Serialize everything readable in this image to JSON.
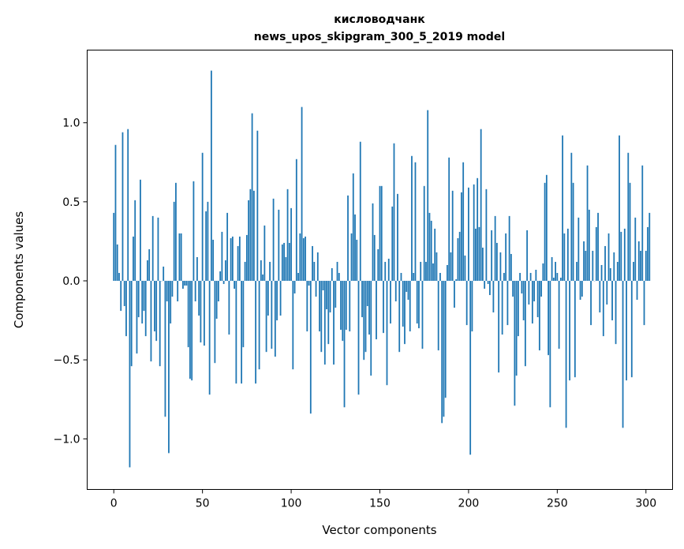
{
  "chart_data": {
    "type": "bar",
    "title": "кисловодчанк",
    "subtitle": "news_upos_skipgram_300_5_2019 model",
    "xlabel": "Vector components",
    "ylabel": "Components values",
    "xlim": [
      -15,
      315
    ],
    "ylim": [
      -1.32,
      1.46
    ],
    "xticks": [
      0,
      50,
      100,
      150,
      200,
      250,
      300
    ],
    "xtick_labels": [
      "0",
      "50",
      "100",
      "150",
      "200",
      "250",
      "300"
    ],
    "yticks": [
      -1.0,
      -0.5,
      0.0,
      0.5,
      1.0
    ],
    "ytick_labels": [
      "−1.0",
      "−0.5",
      "0.0",
      "0.5",
      "1.0"
    ],
    "grid": false,
    "color": "#1f77b4",
    "values": [
      0.43,
      0.86,
      0.23,
      0.05,
      -0.19,
      0.94,
      -0.16,
      -0.35,
      0.96,
      -1.18,
      -0.54,
      0.28,
      0.51,
      -0.46,
      -0.23,
      0.64,
      -0.27,
      -0.19,
      -0.35,
      0.13,
      0.2,
      -0.51,
      0.41,
      -0.32,
      -0.38,
      0.4,
      -0.54,
      0.0,
      0.09,
      -0.86,
      -0.13,
      -1.09,
      -0.27,
      -0.1,
      0.5,
      0.62,
      -0.13,
      0.3,
      0.3,
      -0.05,
      -0.03,
      -0.03,
      -0.42,
      -0.62,
      -0.63,
      0.63,
      -0.13,
      0.15,
      -0.22,
      -0.39,
      0.81,
      -0.41,
      0.44,
      0.5,
      -0.72,
      1.33,
      0.26,
      -0.52,
      -0.24,
      -0.13,
      0.06,
      0.31,
      -0.02,
      0.13,
      0.43,
      -0.34,
      0.27,
      0.28,
      -0.05,
      -0.65,
      0.22,
      0.28,
      -0.65,
      -0.42,
      0.12,
      0.29,
      0.51,
      0.58,
      1.06,
      0.57,
      -0.65,
      0.95,
      -0.56,
      0.13,
      0.04,
      0.35,
      -0.45,
      -0.22,
      0.12,
      -0.43,
      0.52,
      -0.48,
      -0.25,
      0.45,
      -0.22,
      0.23,
      0.24,
      0.15,
      0.58,
      0.24,
      0.46,
      -0.56,
      -0.08,
      0.77,
      0.05,
      0.3,
      1.1,
      0.27,
      0.28,
      -0.32,
      -0.03,
      -0.84,
      0.22,
      0.12,
      -0.1,
      0.18,
      -0.32,
      -0.45,
      -0.06,
      -0.53,
      -0.18,
      -0.4,
      -0.2,
      0.08,
      -0.53,
      -0.17,
      0.12,
      0.05,
      -0.31,
      -0.38,
      -0.8,
      -0.31,
      0.54,
      -0.32,
      0.3,
      0.68,
      0.42,
      0.26,
      -0.72,
      0.88,
      -0.23,
      -0.5,
      -0.45,
      -0.16,
      -0.34,
      -0.6,
      0.49,
      0.29,
      -0.37,
      0.2,
      0.6,
      0.6,
      -0.33,
      0.12,
      -0.66,
      0.14,
      -0.27,
      0.47,
      0.87,
      -0.13,
      0.55,
      -0.45,
      0.05,
      -0.29,
      -0.4,
      -0.07,
      -0.12,
      -0.32,
      0.79,
      0.05,
      0.75,
      -0.27,
      -0.3,
      0.12,
      -0.43,
      0.6,
      0.12,
      1.08,
      0.43,
      0.38,
      0.11,
      0.33,
      0.18,
      -0.44,
      0.05,
      -0.9,
      -0.86,
      -0.74,
      0.1,
      0.78,
      0.18,
      0.57,
      -0.17,
      0.01,
      0.27,
      0.31,
      0.56,
      0.75,
      0.16,
      -0.28,
      0.59,
      -1.1,
      -0.32,
      0.61,
      0.33,
      0.65,
      0.34,
      0.96,
      0.21,
      -0.05,
      0.58,
      -0.02,
      -0.09,
      0.32,
      -0.2,
      0.41,
      0.24,
      -0.58,
      0.18,
      -0.34,
      0.05,
      0.3,
      -0.28,
      0.41,
      0.17,
      -0.1,
      -0.79,
      -0.6,
      -0.35,
      0.05,
      -0.08,
      -0.25,
      -0.54,
      0.32,
      -0.15,
      0.05,
      -0.27,
      -0.13,
      0.07,
      -0.23,
      -0.44,
      -0.1,
      0.11,
      0.62,
      0.67,
      -0.47,
      -0.8,
      0.15,
      0.02,
      0.12,
      0.05,
      -0.43,
      0.02,
      0.92,
      0.3,
      -0.93,
      0.33,
      -0.63,
      0.81,
      0.62,
      -0.61,
      0.12,
      0.4,
      -0.12,
      -0.1,
      0.25,
      0.19,
      0.73,
      0.45,
      -0.28,
      0.19,
      0.0,
      0.34,
      0.43,
      -0.2,
      0.1,
      -0.35,
      0.22,
      -0.15,
      0.3,
      0.08,
      -0.25,
      0.18,
      -0.4,
      0.12,
      0.92,
      0.31,
      -0.93,
      0.33,
      -0.63,
      0.81,
      0.62,
      -0.61,
      0.12,
      0.4,
      -0.12,
      0.25,
      0.19,
      0.73,
      -0.28,
      0.19,
      0.34,
      0.43
    ]
  }
}
